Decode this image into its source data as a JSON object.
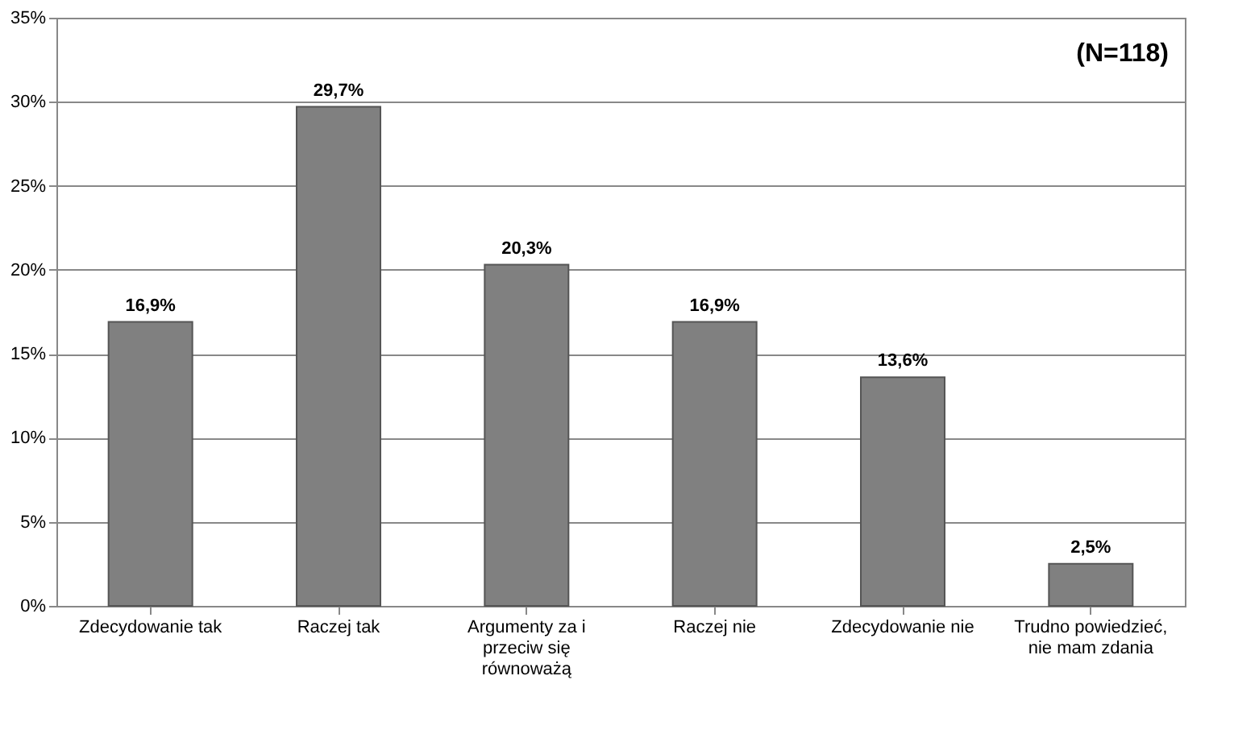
{
  "chart_data": {
    "type": "bar",
    "categories": [
      "Zdecydowanie tak",
      "Raczej tak",
      "Argumenty za i przeciw się równoważą",
      "Raczej nie",
      "Zdecydowanie nie",
      "Trudno powiedzieć, nie mam zdania"
    ],
    "values": [
      16.9,
      29.7,
      20.3,
      16.9,
      13.6,
      2.5
    ],
    "value_labels": [
      "16,9%",
      "29,7%",
      "20,3%",
      "16,9%",
      "13,6%",
      "2,5%"
    ],
    "color": "#808080",
    "ylim": [
      0,
      35
    ],
    "yticks": [
      {
        "value": 0,
        "label": "0%"
      },
      {
        "value": 5,
        "label": "5%"
      },
      {
        "value": 10,
        "label": "10%"
      },
      {
        "value": 15,
        "label": "15%"
      },
      {
        "value": 20,
        "label": "20%"
      },
      {
        "value": 25,
        "label": "25%"
      },
      {
        "value": 30,
        "label": "30%"
      },
      {
        "value": 35,
        "label": "35%"
      }
    ],
    "grid": "y",
    "annotations": [
      "(N=118)"
    ]
  }
}
